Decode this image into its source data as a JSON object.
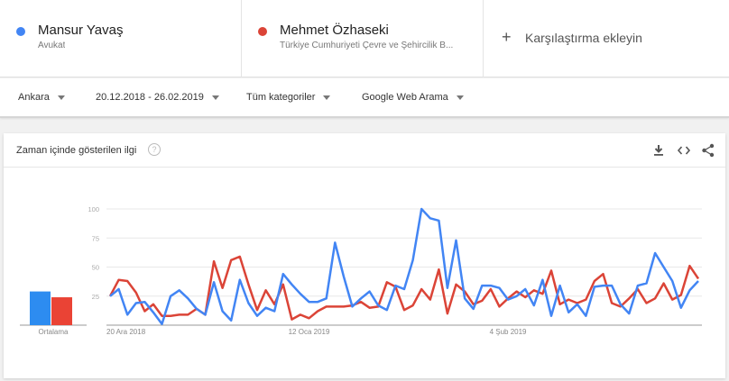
{
  "terms": [
    {
      "name": "Mansur Yavaş",
      "subtitle": "Avukat",
      "color": "#4285f4"
    },
    {
      "name": "Mehmet Özhaseki",
      "subtitle": "Türkiye Cumhuriyeti Çevre ve Şehircilik B...",
      "color": "#db4437"
    }
  ],
  "add_comparison": {
    "icon": "plus-icon",
    "label": "Karşılaştırma ekleyin"
  },
  "filters": {
    "region": "Ankara",
    "date_range": "20.12.2018 - 26.02.2019",
    "category": "Tüm kategoriler",
    "search_type": "Google Web Arama"
  },
  "panel": {
    "title": "Zaman içinde gösterilen ilgi",
    "help_icon": "question-mark-icon",
    "actions": [
      "download-icon",
      "embed-code-icon",
      "share-icon"
    ]
  },
  "chart_data": {
    "type": "line",
    "title": "Zaman içinde gösterilen ilgi",
    "xlabel": "",
    "ylabel": "",
    "ylim": [
      0,
      100
    ],
    "yticks": [
      25,
      50,
      75,
      100
    ],
    "xtick_labels": [
      "20 Ara 2018",
      "12 Oca 2019",
      "4 Şub 2019"
    ],
    "x_start": "20.12.2018",
    "x_end": "26.02.2019",
    "grid": true,
    "legend_position": "top (term cards)",
    "series": [
      {
        "name": "Mansur Yavaş",
        "color": "#4285f4",
        "average": 29,
        "values": [
          25,
          31,
          9,
          19,
          20,
          11,
          1,
          25,
          30,
          23,
          14,
          9,
          37,
          12,
          4,
          39,
          19,
          8,
          15,
          12,
          44,
          35,
          27,
          20,
          20,
          23,
          71,
          42,
          16,
          23,
          29,
          17,
          13,
          34,
          31,
          56,
          100,
          92,
          90,
          32,
          73,
          23,
          14,
          34,
          34,
          32,
          22,
          25,
          31,
          17,
          39,
          8,
          34,
          11,
          18,
          8,
          33,
          34,
          34,
          18,
          10,
          34,
          36,
          62,
          50,
          38,
          15,
          30,
          38
        ]
      },
      {
        "name": "Mehmet Özhaseki",
        "color": "#db4437",
        "average": 24,
        "values": [
          25,
          39,
          38,
          28,
          12,
          18,
          8,
          8,
          9,
          9,
          14,
          9,
          55,
          32,
          56,
          59,
          35,
          13,
          30,
          18,
          35,
          5,
          9,
          6,
          12,
          16,
          16,
          16,
          17,
          20,
          15,
          16,
          37,
          33,
          13,
          17,
          31,
          22,
          48,
          10,
          35,
          29,
          18,
          21,
          31,
          16,
          23,
          29,
          24,
          30,
          27,
          47,
          18,
          22,
          19,
          22,
          38,
          44,
          19,
          16,
          23,
          31,
          19,
          23,
          36,
          22,
          26,
          51,
          40
        ]
      }
    ]
  }
}
